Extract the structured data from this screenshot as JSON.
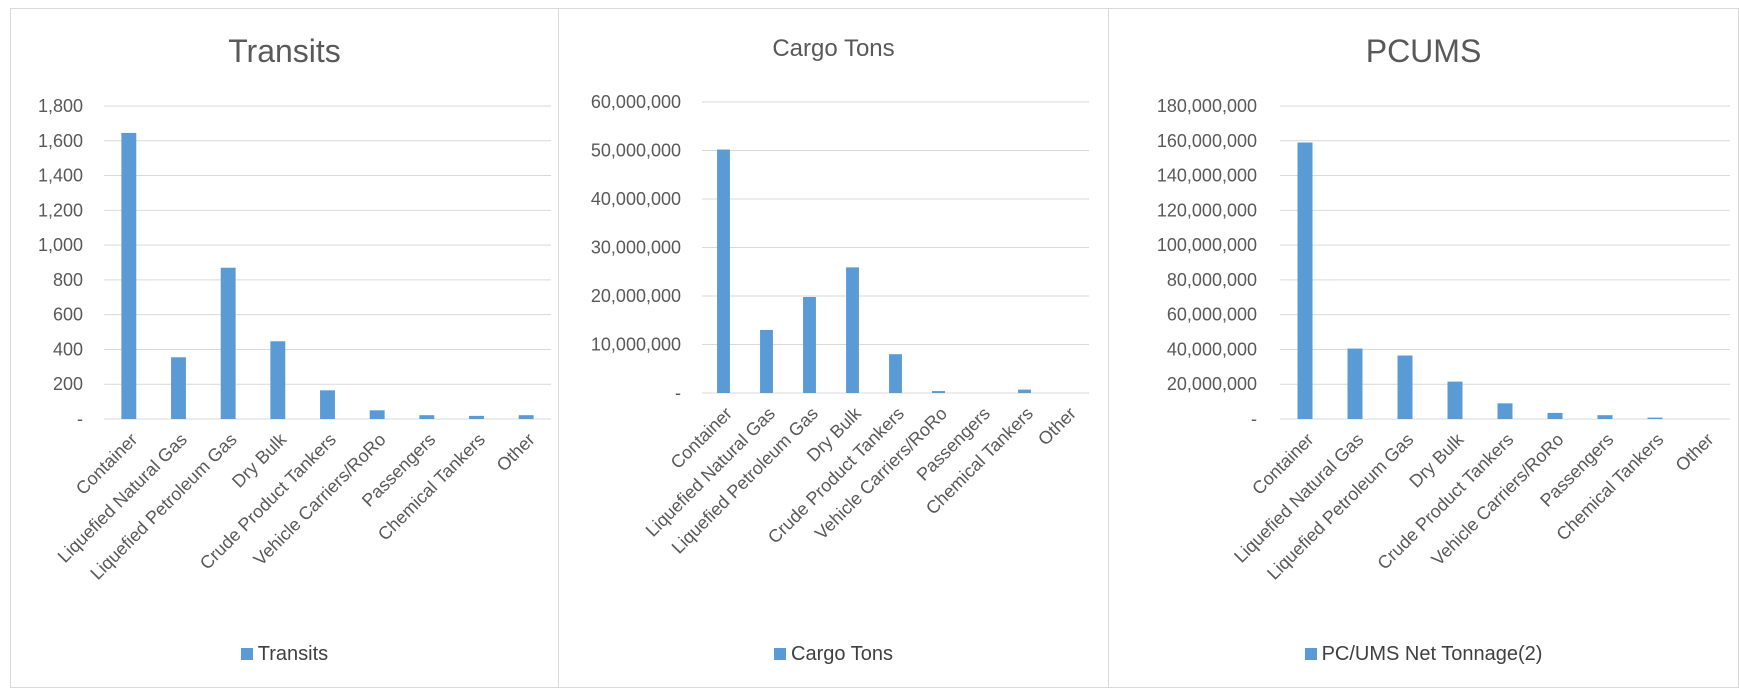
{
  "categories": [
    "Container",
    "Liquefied Natural Gas",
    "Liquefied Petroleum Gas",
    "Dry Bulk",
    "Crude Product Tankers",
    "Vehicle Carriers/RoRo",
    "Passengers",
    "Chemical Tankers",
    "Other"
  ],
  "colors": {
    "bar": "#5b9bd5",
    "grid": "#d9d9d9",
    "text": "#595959",
    "border": "#d9d9d9"
  },
  "chart_data": [
    {
      "type": "bar",
      "title": "Transits",
      "xlabel": "",
      "ylabel": "",
      "ylim": [
        0,
        1800
      ],
      "yticks": [
        0,
        200,
        400,
        600,
        800,
        1000,
        1200,
        1400,
        1600,
        1800
      ],
      "ytick_labels": [
        "-",
        "200",
        "400",
        "600",
        "800",
        "1,000",
        "1,200",
        "1,400",
        "1,600",
        "1,800"
      ],
      "grid": true,
      "legend": "bottom",
      "series": [
        {
          "name": "Transits",
          "values": [
            1645,
            355,
            870,
            447,
            165,
            50,
            22,
            18,
            22
          ]
        }
      ]
    },
    {
      "type": "bar",
      "title": "Cargo Tons",
      "xlabel": "",
      "ylabel": "",
      "ylim": [
        0,
        60000000
      ],
      "yticks": [
        0,
        10000000,
        20000000,
        30000000,
        40000000,
        50000000,
        60000000
      ],
      "ytick_labels": [
        "-",
        "10,000,000",
        "20,000,000",
        "30,000,000",
        "40,000,000",
        "50,000,000",
        "60,000,000"
      ],
      "grid": true,
      "legend": "bottom",
      "series": [
        {
          "name": "Cargo Tons",
          "values": [
            50200000,
            13000000,
            19800000,
            25900000,
            8000000,
            400000,
            0,
            700000,
            0
          ]
        }
      ]
    },
    {
      "type": "bar",
      "title": "PCUMS",
      "xlabel": "",
      "ylabel": "",
      "ylim": [
        0,
        180000000
      ],
      "yticks": [
        0,
        20000000,
        40000000,
        60000000,
        80000000,
        100000000,
        120000000,
        140000000,
        160000000,
        180000000
      ],
      "ytick_labels": [
        "-",
        "20,000,000",
        "40,000,000",
        "60,000,000",
        "80,000,000",
        "100,000,000",
        "120,000,000",
        "140,000,000",
        "160,000,000",
        "180,000,000"
      ],
      "grid": true,
      "legend": "bottom",
      "series": [
        {
          "name": "PC/UMS Net Tonnage(2)",
          "values": [
            159000000,
            40500000,
            36500000,
            21500000,
            9000000,
            3500000,
            2200000,
            800000,
            0
          ]
        }
      ]
    }
  ]
}
